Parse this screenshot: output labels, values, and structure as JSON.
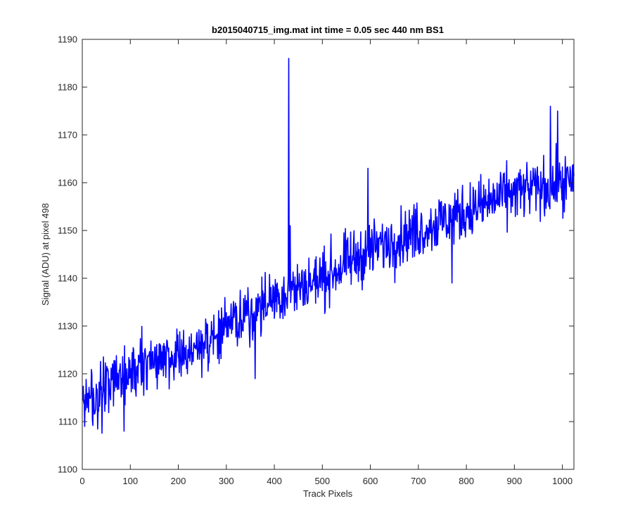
{
  "chart_data": {
    "type": "line",
    "title": "b2015040715_img.mat int time = 0.05 sec  440 nm BS1",
    "xlabel": "Track Pixels",
    "ylabel": "Signal (ADU) at pixel 498",
    "xlim": [
      0,
      1024
    ],
    "ylim": [
      1100,
      1190
    ],
    "xticks": [
      0,
      100,
      200,
      300,
      400,
      500,
      600,
      700,
      800,
      900,
      1000
    ],
    "yticks": [
      1100,
      1110,
      1120,
      1130,
      1140,
      1150,
      1160,
      1170,
      1180,
      1190
    ],
    "grid": false,
    "line_color": "#0000ff",
    "series": [
      {
        "x_start": 1,
        "x_step": 1,
        "trend_points": [
          [
            0,
            1113
          ],
          [
            100,
            1120
          ],
          [
            200,
            1124
          ],
          [
            300,
            1129
          ],
          [
            350,
            1133
          ],
          [
            400,
            1136
          ],
          [
            500,
            1140
          ],
          [
            600,
            1146
          ],
          [
            700,
            1150
          ],
          [
            800,
            1154
          ],
          [
            900,
            1158
          ],
          [
            1024,
            1160
          ]
        ],
        "noise_amplitude": 3,
        "peaks": [
          [
            5,
            1109
          ],
          [
            87,
            1108
          ],
          [
            360,
            1119
          ],
          [
            430,
            1186
          ],
          [
            433,
            1151
          ],
          [
            595,
            1163
          ],
          [
            770,
            1139
          ],
          [
            975,
            1176
          ],
          [
            990,
            1175
          ]
        ]
      }
    ]
  }
}
